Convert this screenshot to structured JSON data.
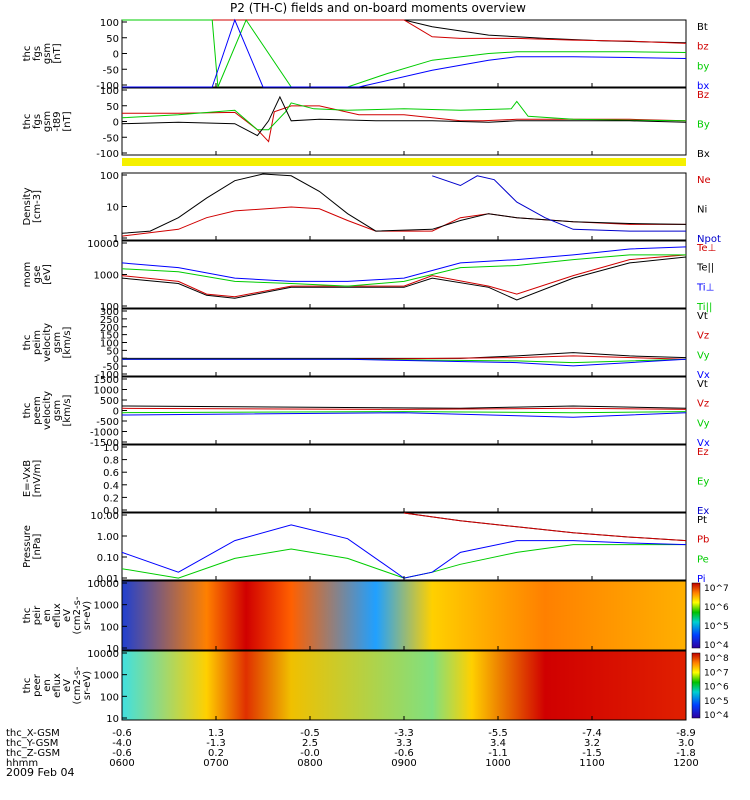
{
  "title": "P2 (TH-C) fields and on-board moments overview",
  "date": "2009 Feb 04",
  "chart_data": [
    {
      "type": "line",
      "ylabel": [
        "thc",
        "fgs",
        "gsm",
        "[nT]"
      ],
      "yticks": [
        "100",
        "50",
        "0",
        "-50",
        "-100"
      ],
      "ylim": [
        -100,
        100
      ],
      "series": [
        {
          "name": "Bt",
          "color": "#000000",
          "x": [
            0.0,
            0.06,
            0.15,
            0.3,
            0.4,
            0.45,
            0.5,
            0.55,
            0.65,
            0.75,
            0.85,
            1.0
          ],
          "y": [
            100,
            100,
            100,
            100,
            100,
            100,
            100,
            80,
            55,
            45,
            38,
            32
          ]
        },
        {
          "name": "bz",
          "color": "#d00000",
          "x": [
            0.0,
            0.3,
            0.4,
            0.45,
            0.5,
            0.52,
            0.55,
            0.6,
            0.7,
            0.8,
            0.9,
            1.0
          ],
          "y": [
            100,
            100,
            100,
            100,
            100,
            80,
            50,
            45,
            45,
            40,
            37,
            30
          ]
        },
        {
          "name": "by",
          "color": "#00cc00",
          "x": [
            0.0,
            0.16,
            0.17,
            0.22,
            0.3,
            0.4,
            0.47,
            0.55,
            0.65,
            0.7,
            0.8,
            0.9,
            1.0
          ],
          "y": [
            100,
            100,
            -100,
            100,
            -100,
            -100,
            -60,
            -20,
            0,
            5,
            5,
            5,
            3
          ]
        },
        {
          "name": "bx",
          "color": "#0000ff",
          "x": [
            0.0,
            0.16,
            0.2,
            0.25,
            0.3,
            0.38,
            0.42,
            0.55,
            0.65,
            0.7,
            0.8,
            0.9,
            1.0
          ],
          "y": [
            -100,
            -100,
            100,
            -100,
            -100,
            -100,
            -100,
            -50,
            -20,
            -10,
            -10,
            -12,
            -15
          ]
        }
      ]
    },
    {
      "type": "line",
      "ylabel": [
        "thc",
        "fgs",
        "gsm",
        "-t89",
        "[nT]"
      ],
      "yticks": [
        "100",
        "50",
        "0",
        "-50",
        "-100"
      ],
      "ylim": [
        -125,
        100
      ],
      "series": [
        {
          "name": "Bz",
          "color": "#d00000",
          "x": [
            0.0,
            0.1,
            0.2,
            0.24,
            0.26,
            0.27,
            0.3,
            0.35,
            0.42,
            0.5,
            0.6,
            0.64,
            0.7,
            0.8,
            0.9,
            1.0
          ],
          "y": [
            15,
            15,
            18,
            -40,
            -80,
            20,
            40,
            40,
            10,
            10,
            -10,
            -10,
            -5,
            -5,
            -5,
            -10
          ]
        },
        {
          "name": "By",
          "color": "#00cc00",
          "x": [
            0.0,
            0.1,
            0.2,
            0.24,
            0.26,
            0.29,
            0.3,
            0.34,
            0.4,
            0.5,
            0.6,
            0.69,
            0.7,
            0.72,
            0.8,
            0.9,
            1.0
          ],
          "y": [
            0,
            10,
            25,
            -40,
            -40,
            20,
            50,
            30,
            25,
            30,
            25,
            30,
            55,
            5,
            -5,
            -8,
            -10
          ]
        },
        {
          "name": "Bx",
          "color": "#000000",
          "x": [
            0.0,
            0.1,
            0.2,
            0.24,
            0.26,
            0.28,
            0.3,
            0.35,
            0.45,
            0.55,
            0.65,
            0.7,
            0.8,
            0.9,
            1.0
          ],
          "y": [
            -20,
            -15,
            -20,
            -60,
            -10,
            70,
            -10,
            -5,
            -10,
            -10,
            -15,
            -10,
            -10,
            -10,
            -15
          ]
        }
      ]
    },
    {
      "type": "line",
      "log": true,
      "ylabel": [
        "Density",
        "[cm-3]"
      ],
      "yticks": [
        "100",
        "10",
        "1"
      ],
      "ylim": [
        0.2,
        200
      ],
      "series": [
        {
          "name": "Ne",
          "color": "#d00000",
          "x": [
            0.0,
            0.1,
            0.15,
            0.2,
            0.3,
            0.35,
            0.4,
            0.45,
            0.55,
            0.6,
            0.65,
            0.7,
            0.8,
            0.9,
            1.0
          ],
          "y": [
            0.3,
            0.6,
            2,
            4,
            6,
            5,
            1.5,
            0.5,
            0.5,
            2,
            3,
            2,
            1.3,
            1,
            1
          ]
        },
        {
          "name": "Ni",
          "color": "#000000",
          "x": [
            0.0,
            0.05,
            0.1,
            0.15,
            0.2,
            0.25,
            0.3,
            0.35,
            0.4,
            0.45,
            0.55,
            0.6,
            0.65,
            0.7,
            0.8,
            0.9,
            1.0
          ],
          "y": [
            0.4,
            0.5,
            2,
            15,
            90,
            180,
            150,
            30,
            3,
            0.5,
            0.6,
            1.5,
            3,
            2,
            1.3,
            1.1,
            1
          ]
        },
        {
          "name": "Npot",
          "color": "#0000cc",
          "x": [
            0.55,
            0.6,
            0.63,
            0.66,
            0.7,
            0.75,
            0.8,
            0.9,
            1.0
          ],
          "y": [
            150,
            55,
            150,
            100,
            10,
            2,
            0.6,
            0.5,
            0.5
          ]
        }
      ]
    },
    {
      "type": "line",
      "log": true,
      "ylabel": [
        "mom",
        "gse",
        "[eV]"
      ],
      "yticks": [
        "10000",
        "1000",
        "100"
      ],
      "ylim": [
        30,
        10000
      ],
      "series": [
        {
          "name": "Te⊥",
          "color": "#d00000",
          "x": [
            0.0,
            0.1,
            0.15,
            0.2,
            0.3,
            0.5,
            0.55,
            0.65,
            0.7,
            0.8,
            0.9,
            1.0
          ],
          "y": [
            500,
            300,
            100,
            80,
            200,
            200,
            500,
            200,
            100,
            500,
            2000,
            3000
          ]
        },
        {
          "name": "Te||",
          "color": "#000000",
          "x": [
            0.0,
            0.1,
            0.15,
            0.2,
            0.3,
            0.5,
            0.55,
            0.65,
            0.7,
            0.8,
            0.9,
            1.0
          ],
          "y": [
            400,
            250,
            90,
            70,
            180,
            180,
            400,
            180,
            60,
            400,
            1500,
            2500
          ]
        },
        {
          "name": "Ti⊥",
          "color": "#0000ff",
          "x": [
            0.0,
            0.1,
            0.2,
            0.3,
            0.4,
            0.5,
            0.6,
            0.7,
            0.8,
            0.9,
            1.0
          ],
          "y": [
            1500,
            1000,
            400,
            300,
            300,
            400,
            1500,
            2000,
            3000,
            5000,
            6000
          ]
        },
        {
          "name": "Ti||",
          "color": "#00cc00",
          "x": [
            0.0,
            0.1,
            0.2,
            0.3,
            0.4,
            0.5,
            0.6,
            0.7,
            0.8,
            0.9,
            1.0
          ],
          "y": [
            900,
            700,
            300,
            250,
            200,
            300,
            1000,
            1200,
            2000,
            3000,
            3000
          ]
        }
      ]
    },
    {
      "type": "line",
      "ylabel": [
        "thc",
        "peim",
        "velocity",
        "gsm",
        "[km/s]"
      ],
      "yticks": [
        "300",
        "250",
        "200",
        "150",
        "100",
        "50",
        "0",
        "-50",
        "-100"
      ],
      "ylim": [
        -100,
        300
      ],
      "series": [
        {
          "name": "Vt",
          "color": "#000000",
          "x": [
            0.0,
            0.2,
            0.4,
            0.6,
            0.7,
            0.8,
            0.9,
            1.0
          ],
          "y": [
            5,
            5,
            5,
            5,
            20,
            40,
            20,
            10
          ]
        },
        {
          "name": "Vz",
          "color": "#d00000",
          "x": [
            0.0,
            0.4,
            0.7,
            0.8,
            1.0
          ],
          "y": [
            0,
            0,
            10,
            20,
            0
          ]
        },
        {
          "name": "Vy",
          "color": "#00cc00",
          "x": [
            0.0,
            0.4,
            0.7,
            0.8,
            1.0
          ],
          "y": [
            0,
            0,
            -10,
            -20,
            0
          ]
        },
        {
          "name": "Vx",
          "color": "#0000ff",
          "x": [
            0.0,
            0.4,
            0.7,
            0.8,
            1.0
          ],
          "y": [
            0,
            0,
            -20,
            -40,
            0
          ]
        }
      ]
    },
    {
      "type": "line",
      "ylabel": [
        "thc",
        "peem",
        "velocity",
        "gsm",
        "[km/s]"
      ],
      "yticks": [
        "1500",
        "1000",
        "500",
        "0",
        "-500",
        "-1000",
        "-1500"
      ],
      "ylim": [
        -1500,
        1500
      ],
      "series": [
        {
          "name": "Vt",
          "color": "#000000",
          "x": [
            0.0,
            0.3,
            0.6,
            0.7,
            0.8,
            1.0
          ],
          "y": [
            200,
            150,
            100,
            150,
            200,
            100
          ]
        },
        {
          "name": "Vz",
          "color": "#d00000",
          "x": [
            0.0,
            0.5,
            0.8,
            1.0
          ],
          "y": [
            100,
            50,
            100,
            50
          ]
        },
        {
          "name": "Vy",
          "color": "#00cc00",
          "x": [
            0.0,
            0.5,
            0.8,
            1.0
          ],
          "y": [
            -100,
            -50,
            -100,
            -50
          ]
        },
        {
          "name": "Vx",
          "color": "#0000ff",
          "x": [
            0.0,
            0.5,
            0.8,
            1.0
          ],
          "y": [
            -200,
            -100,
            -300,
            -100
          ]
        }
      ]
    },
    {
      "type": "line",
      "ylabel": [
        "E=-VxB",
        "[mV/m]"
      ],
      "yticks": [
        "1.0",
        "0.8",
        "0.6",
        "0.4",
        "0.2",
        "0.0"
      ],
      "ylim": [
        0,
        1
      ],
      "series": [
        {
          "name": "Ez",
          "color": "#d00000",
          "x": [],
          "y": []
        },
        {
          "name": "Ey",
          "color": "#00cc00",
          "x": [],
          "y": []
        },
        {
          "name": "Ex",
          "color": "#0000cc",
          "x": [],
          "y": []
        }
      ]
    },
    {
      "type": "line",
      "log": true,
      "ylabel": [
        "Pressure",
        "[nPa]"
      ],
      "yticks": [
        "10.00",
        "1.00",
        "0.10",
        "0.01"
      ],
      "ylim": [
        0.008,
        20
      ],
      "series": [
        {
          "name": "Pt",
          "color": "#000000",
          "x": [
            0.5,
            0.6,
            0.7,
            0.8,
            0.9,
            1.0
          ],
          "y": [
            20,
            8,
            4,
            2,
            1.2,
            0.8
          ]
        },
        {
          "name": "Pb",
          "color": "#d00000",
          "x": [
            0.5,
            0.6,
            0.7,
            0.8,
            0.9,
            1.0
          ],
          "y": [
            20,
            8,
            4,
            2,
            1.2,
            0.8
          ]
        },
        {
          "name": "Pe",
          "color": "#00cc00",
          "x": [
            0.0,
            0.1,
            0.2,
            0.3,
            0.4,
            0.5,
            0.55,
            0.6,
            0.7,
            0.8,
            0.9,
            1.0
          ],
          "y": [
            0.03,
            0.01,
            0.1,
            0.3,
            0.1,
            0.01,
            0.02,
            0.05,
            0.2,
            0.5,
            0.5,
            0.5
          ]
        },
        {
          "name": "Pi",
          "color": "#0000ff",
          "x": [
            0.0,
            0.1,
            0.2,
            0.3,
            0.4,
            0.5,
            0.55,
            0.6,
            0.7,
            0.8,
            0.9,
            1.0
          ],
          "y": [
            0.2,
            0.02,
            0.8,
            5,
            1,
            0.01,
            0.02,
            0.2,
            0.8,
            0.8,
            0.6,
            0.5
          ]
        }
      ]
    },
    {
      "type": "heatmap",
      "ylabel": [
        "thc",
        "peir",
        "en",
        "eflux",
        "eV",
        "(cm2-s-",
        "sr-eV)"
      ],
      "yticks": [
        "10000",
        "1000",
        "100",
        "10"
      ],
      "colorbar": [
        "10^7",
        "10^6",
        "10^5",
        "10^4"
      ]
    },
    {
      "type": "heatmap",
      "ylabel": [
        "thc",
        "peer",
        "en",
        "eflux",
        "eV",
        "(cm2-s-",
        "sr-eV)"
      ],
      "yticks": [
        "10000",
        "1000",
        "100",
        "10"
      ],
      "colorbar": [
        "10^8",
        "10^7",
        "10^6",
        "10^5",
        "10^4"
      ]
    }
  ],
  "xaxis": {
    "rows": [
      {
        "label": "thc_X-GSM",
        "values": [
          "-0.6",
          "1.3",
          "-0.5",
          "-3.3",
          "-5.5",
          "-7.4",
          "-8.9"
        ]
      },
      {
        "label": "thc_Y-GSM",
        "values": [
          "-4.0",
          "-1.3",
          "2.5",
          "3.3",
          "3.4",
          "3.2",
          "3.0"
        ]
      },
      {
        "label": "thc_Z-GSM",
        "values": [
          "-0.6",
          "0.2",
          "-0.0",
          "-0.6",
          "-1.1",
          "-1.5",
          "-1.8"
        ]
      },
      {
        "label": "hhmm",
        "values": [
          "0600",
          "0700",
          "0800",
          "0900",
          "1000",
          "1100",
          "1200"
        ]
      }
    ]
  }
}
